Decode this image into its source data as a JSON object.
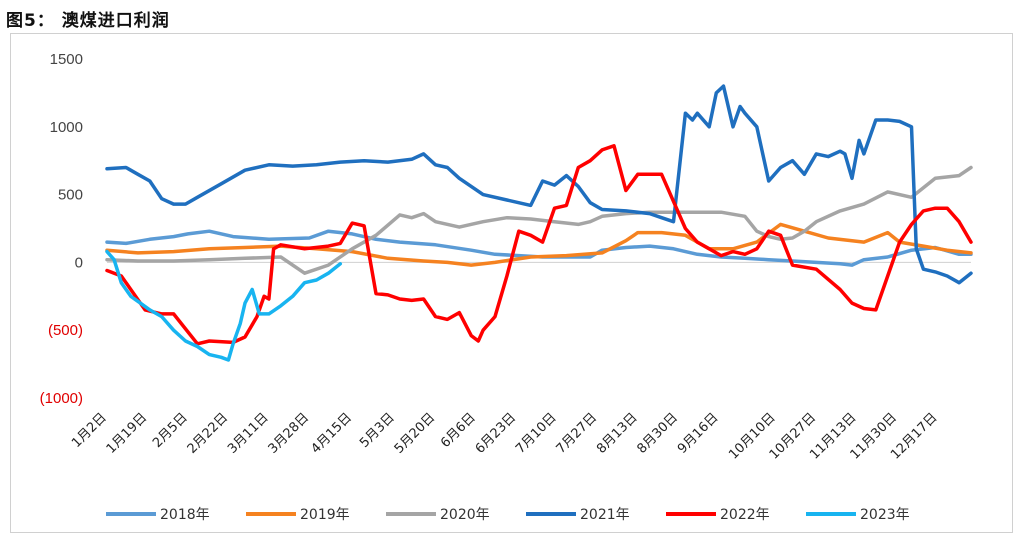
{
  "figure_title": "图5： 澳煤进口利润",
  "chart_data": {
    "type": "line",
    "title": "澳煤进口利润",
    "xlabel": "",
    "ylabel": "",
    "ylim": [
      -1000,
      1500
    ],
    "grid": false,
    "legend_position": "bottom",
    "y_ticks": [
      {
        "value": 1500,
        "label": "1500",
        "negative": false
      },
      {
        "value": 1000,
        "label": "1000",
        "negative": false
      },
      {
        "value": 500,
        "label": "500",
        "negative": false
      },
      {
        "value": 0,
        "label": "0",
        "negative": false
      },
      {
        "value": -500,
        "label": "(500)",
        "negative": true
      },
      {
        "value": -1000,
        "label": "(1000)",
        "negative": true
      }
    ],
    "x_tick_labels": [
      "1月2日",
      "1月19日",
      "2月5日",
      "2月22日",
      "3月11日",
      "3月28日",
      "4月15日",
      "5月3日",
      "5月20日",
      "6月6日",
      "6月23日",
      "7月10日",
      "7月27日",
      "8月13日",
      "8月30日",
      "9月16日",
      "10月10日",
      "10月27日",
      "11月13日",
      "11月30日",
      "12月17日"
    ],
    "x_tick_days": [
      2,
      19,
      36,
      53,
      70,
      87,
      105,
      123,
      140,
      157,
      174,
      191,
      208,
      225,
      242,
      259,
      283,
      300,
      317,
      334,
      351
    ],
    "x_unit": "day_of_year",
    "x_range": [
      2,
      365
    ],
    "series": [
      {
        "name": "2018年",
        "color": "#5b9bd5",
        "x": [
          2,
          10,
          20,
          30,
          36,
          45,
          55,
          70,
          87,
          95,
          105,
          115,
          125,
          140,
          155,
          165,
          175,
          185,
          195,
          205,
          210,
          220,
          230,
          240,
          250,
          260,
          270,
          280,
          290,
          300,
          310,
          315,
          320,
          330,
          340,
          350,
          360,
          365
        ],
        "y": [
          150,
          140,
          170,
          190,
          210,
          230,
          190,
          170,
          180,
          230,
          210,
          170,
          150,
          130,
          90,
          60,
          50,
          40,
          40,
          40,
          90,
          110,
          120,
          100,
          60,
          40,
          30,
          20,
          10,
          0,
          -10,
          -20,
          20,
          40,
          90,
          110,
          60,
          60
        ]
      },
      {
        "name": "2019年",
        "color": "#f58220",
        "x": [
          2,
          15,
          30,
          45,
          60,
          75,
          90,
          105,
          120,
          135,
          145,
          155,
          165,
          180,
          195,
          210,
          220,
          225,
          235,
          245,
          255,
          265,
          275,
          285,
          295,
          305,
          320,
          330,
          335,
          345,
          355,
          365
        ],
        "y": [
          90,
          70,
          80,
          100,
          110,
          120,
          100,
          80,
          30,
          10,
          0,
          -20,
          0,
          40,
          50,
          70,
          160,
          220,
          220,
          200,
          100,
          100,
          150,
          280,
          230,
          180,
          150,
          220,
          150,
          120,
          90,
          70
        ]
      },
      {
        "name": "2020年",
        "color": "#a5a5a5",
        "x": [
          2,
          15,
          30,
          45,
          60,
          75,
          85,
          95,
          105,
          115,
          125,
          130,
          135,
          140,
          150,
          160,
          170,
          180,
          190,
          200,
          205,
          210,
          220,
          230,
          240,
          250,
          260,
          270,
          275,
          280,
          285,
          290,
          295,
          300,
          310,
          320,
          330,
          340,
          350,
          360,
          365
        ],
        "y": [
          20,
          10,
          10,
          20,
          30,
          40,
          -80,
          -20,
          100,
          200,
          350,
          330,
          360,
          300,
          260,
          300,
          330,
          320,
          300,
          280,
          300,
          340,
          360,
          370,
          370,
          370,
          370,
          340,
          230,
          190,
          170,
          180,
          230,
          300,
          380,
          430,
          520,
          480,
          620,
          640,
          700
        ]
      },
      {
        "name": "2021年",
        "color": "#1f6fbf",
        "x": [
          2,
          10,
          15,
          20,
          25,
          30,
          35,
          40,
          50,
          60,
          70,
          80,
          90,
          100,
          110,
          120,
          130,
          135,
          140,
          145,
          150,
          160,
          170,
          180,
          185,
          190,
          195,
          200,
          205,
          210,
          220,
          230,
          235,
          240,
          245,
          248,
          250,
          255,
          258,
          261,
          265,
          268,
          270,
          275,
          280,
          285,
          290,
          295,
          300,
          305,
          310,
          312,
          315,
          318,
          320,
          325,
          330,
          335,
          340,
          342,
          345,
          350,
          355,
          360,
          365
        ],
        "y": [
          690,
          700,
          650,
          600,
          470,
          430,
          430,
          480,
          580,
          680,
          720,
          710,
          720,
          740,
          750,
          740,
          760,
          800,
          720,
          700,
          620,
          500,
          460,
          420,
          600,
          570,
          640,
          560,
          440,
          390,
          380,
          360,
          330,
          300,
          1100,
          1050,
          1100,
          1000,
          1250,
          1300,
          1000,
          1150,
          1100,
          1000,
          600,
          700,
          750,
          650,
          800,
          780,
          820,
          800,
          620,
          900,
          800,
          1050,
          1050,
          1040,
          1000,
          100,
          -50,
          -70,
          -100,
          -150,
          -80
        ]
      },
      {
        "name": "2022年",
        "color": "#ff0000",
        "x": [
          2,
          8,
          12,
          18,
          25,
          30,
          40,
          45,
          55,
          60,
          65,
          68,
          70,
          72,
          75,
          85,
          95,
          100,
          105,
          110,
          115,
          120,
          125,
          130,
          135,
          140,
          145,
          150,
          155,
          158,
          160,
          165,
          170,
          175,
          180,
          185,
          190,
          195,
          200,
          205,
          210,
          215,
          220,
          225,
          230,
          235,
          240,
          245,
          250,
          255,
          260,
          265,
          270,
          275,
          280,
          285,
          290,
          300,
          310,
          315,
          320,
          325,
          330,
          335,
          340,
          345,
          350,
          355,
          360,
          365
        ],
        "y": [
          -60,
          -100,
          -200,
          -350,
          -380,
          -380,
          -600,
          -580,
          -590,
          -550,
          -400,
          -250,
          -270,
          100,
          130,
          100,
          120,
          140,
          290,
          270,
          -230,
          -240,
          -270,
          -280,
          -270,
          -400,
          -420,
          -370,
          -540,
          -580,
          -500,
          -400,
          -100,
          230,
          200,
          150,
          400,
          420,
          700,
          750,
          830,
          860,
          530,
          650,
          650,
          650,
          450,
          250,
          150,
          100,
          50,
          80,
          60,
          100,
          230,
          200,
          -20,
          -50,
          -200,
          -300,
          -340,
          -350,
          -100,
          150,
          280,
          380,
          400,
          400,
          300,
          150
        ]
      },
      {
        "name": "2023年",
        "color": "#18b4f0",
        "x": [
          2,
          5,
          8,
          12,
          16,
          20,
          25,
          30,
          35,
          40,
          45,
          50,
          53,
          55,
          58,
          60,
          63,
          66,
          70,
          75,
          80,
          85,
          90,
          95,
          100
        ],
        "y": [
          80,
          20,
          -150,
          -250,
          -300,
          -350,
          -400,
          -500,
          -580,
          -620,
          -680,
          -700,
          -720,
          -600,
          -450,
          -300,
          -200,
          -380,
          -380,
          -320,
          -250,
          -150,
          -130,
          -80,
          -10
        ]
      }
    ]
  }
}
